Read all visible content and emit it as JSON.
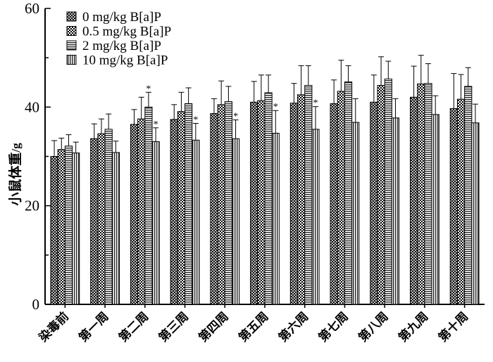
{
  "chart_data": {
    "type": "bar",
    "ylabel": "小鼠体重",
    "yunit": "/g",
    "ylim": [
      0,
      60
    ],
    "yticks": [
      0,
      20,
      40,
      60
    ],
    "legend_position": "top-left",
    "categories": [
      "染毒前",
      "第一周",
      "第二周",
      "第三周",
      "第四周",
      "第五周",
      "第六周",
      "第七周",
      "第八周",
      "第九周",
      "第十周"
    ],
    "series": [
      {
        "name": "0 mg/kg B[a]P",
        "pattern": "pat-cross",
        "values": [
          30.0,
          33.6,
          36.5,
          37.5,
          38.7,
          41.0,
          40.8,
          40.7,
          41.0,
          42.0,
          39.7
        ],
        "errors": [
          3.2,
          3.0,
          3.0,
          3.0,
          3.0,
          4.2,
          4.0,
          4.8,
          5.5,
          6.3,
          7.1
        ],
        "stars": [
          false,
          false,
          false,
          false,
          false,
          false,
          false,
          false,
          false,
          false,
          false
        ]
      },
      {
        "name": "0.5 mg/kg B[a]P",
        "pattern": "pat-check",
        "values": [
          31.4,
          34.6,
          37.6,
          39.1,
          40.5,
          41.3,
          42.5,
          43.2,
          44.4,
          44.7,
          41.6
        ],
        "errors": [
          2.3,
          3.0,
          4.4,
          3.9,
          4.8,
          5.2,
          5.9,
          6.3,
          5.8,
          5.8,
          5.0
        ],
        "stars": [
          false,
          false,
          false,
          false,
          false,
          false,
          false,
          false,
          false,
          false,
          false
        ]
      },
      {
        "name": "2 mg/kg B[a]P",
        "pattern": "pat-hlines",
        "values": [
          32.1,
          35.5,
          40.0,
          40.7,
          41.1,
          42.9,
          44.4,
          45.1,
          45.7,
          44.8,
          44.2
        ],
        "errors": [
          2.3,
          3.1,
          3.0,
          3.2,
          3.1,
          3.6,
          4.0,
          3.3,
          3.6,
          4.0,
          3.8
        ],
        "stars": [
          false,
          false,
          true,
          false,
          false,
          false,
          false,
          false,
          false,
          false,
          false
        ]
      },
      {
        "name": "10 mg/kg B[a]P",
        "pattern": "pat-vlines",
        "values": [
          30.7,
          30.8,
          33.0,
          33.3,
          33.6,
          34.7,
          35.5,
          36.9,
          37.8,
          38.5,
          36.8
        ],
        "errors": [
          2.2,
          2.3,
          2.8,
          3.4,
          3.8,
          4.6,
          4.6,
          4.8,
          3.9,
          3.8,
          3.8
        ],
        "stars": [
          false,
          false,
          true,
          true,
          true,
          true,
          true,
          false,
          false,
          false,
          false
        ]
      }
    ],
    "significance_marker": "*"
  }
}
